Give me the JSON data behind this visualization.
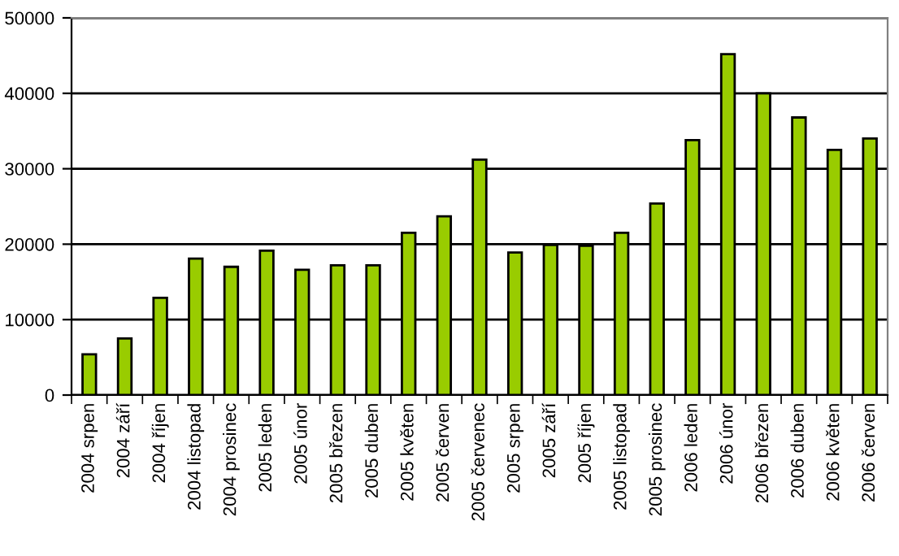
{
  "chart_data": {
    "type": "bar",
    "categories": [
      "2004 srpen",
      "2004 září",
      "2004 říjen",
      "2004 listopad",
      "2004 prosinec",
      "2005 leden",
      "2005 únor",
      "2005 březen",
      "2005 duben",
      "2005 květen",
      "2005 červen",
      "2005 červenec",
      "2005 srpen",
      "2005 září",
      "2005 říjen",
      "2005 listopad",
      "2005 prosinec",
      "2006 leden",
      "2006 únor",
      "2006 březen",
      "2006 duben",
      "2006 květen",
      "2006 červen"
    ],
    "values": [
      5400,
      7500,
      12900,
      18100,
      17000,
      19150,
      16600,
      17200,
      17200,
      21500,
      23700,
      31200,
      18900,
      19900,
      19800,
      21500,
      25400,
      33800,
      45200,
      40000,
      36800,
      32500,
      34000
    ],
    "color": "#99cc00",
    "ylim": [
      0,
      50000
    ],
    "yticks": [
      0,
      10000,
      20000,
      30000,
      40000,
      50000
    ],
    "grid": "y",
    "legend": false
  }
}
